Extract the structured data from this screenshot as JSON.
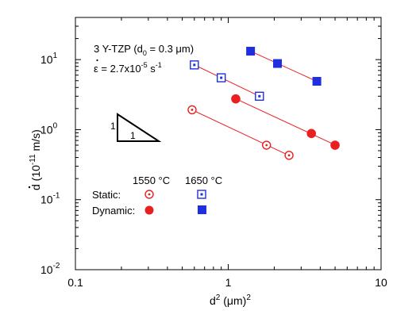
{
  "chart_data": {
    "type": "scatter",
    "xscale": "log",
    "yscale": "log",
    "xlim": [
      0.1,
      10
    ],
    "ylim": [
      0.01,
      40
    ],
    "x_ticks": [
      {
        "v": 0.1,
        "label": "0.1"
      },
      {
        "v": 1,
        "label": "1"
      },
      {
        "v": 10,
        "label": "10"
      }
    ],
    "y_ticks": [
      {
        "v": 0.01,
        "base": "10",
        "exp": "-2"
      },
      {
        "v": 0.1,
        "base": "10",
        "exp": "-1"
      },
      {
        "v": 1,
        "base": "10",
        "exp": "0"
      },
      {
        "v": 10,
        "base": "10",
        "exp": "1"
      }
    ],
    "xlabel": {
      "main": "d",
      "sup": "2",
      "unit": " (μm)",
      "unit_sup": "2"
    },
    "ylabel": {
      "main": "d",
      "unit": " (10",
      "unit_sup": "-11",
      "unit_tail": " m/s)"
    },
    "annotation": {
      "line1_a": "3 Y-TZP  (d",
      "line1_sub": "0",
      "line1_b": " = 0.3 μm)",
      "line2_a": "ε = 2.7x10",
      "line2_sup1": "-5",
      "line2_b": " s",
      "line2_sup2": "-1"
    },
    "triangle": {
      "vertical_label": "1",
      "horizontal_label": "1"
    },
    "legend": {
      "col1": "1550 °C",
      "col2": "1650 °C",
      "row1": "Static:",
      "row2": "Dynamic:"
    },
    "series": [
      {
        "condition": "Static",
        "temperature": "1550 °C",
        "color": "#e8201f",
        "marker": "open-circle",
        "x": [
          0.58,
          1.78,
          2.5
        ],
        "y": [
          1.92,
          0.6,
          0.43
        ]
      },
      {
        "condition": "Dynamic",
        "temperature": "1550 °C",
        "color": "#e8201f",
        "marker": "filled-circle",
        "x": [
          1.12,
          3.5,
          5.0
        ],
        "y": [
          2.75,
          0.88,
          0.6
        ]
      },
      {
        "condition": "Static",
        "temperature": "1650 °C",
        "color": "#1f2fe0",
        "marker": "open-square",
        "x": [
          0.6,
          0.9,
          1.6
        ],
        "y": [
          8.4,
          5.5,
          3.0
        ]
      },
      {
        "condition": "Dynamic",
        "temperature": "1650 °C",
        "color": "#1f2fe0",
        "marker": "filled-square",
        "x": [
          1.4,
          2.1,
          3.8
        ],
        "y": [
          13.2,
          8.8,
          4.9
        ]
      }
    ],
    "fit_line_color": "#e8201f"
  }
}
